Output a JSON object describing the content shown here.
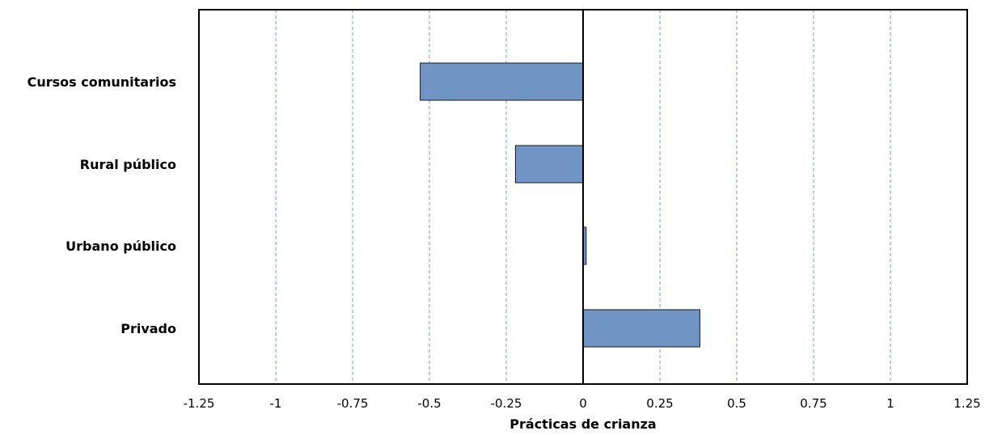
{
  "chart_data": {
    "type": "bar",
    "orientation": "horizontal",
    "categories": [
      "Cursos comunitarios",
      "Rural público",
      "Urbano público",
      "Privado"
    ],
    "values": [
      -0.53,
      -0.22,
      0.01,
      0.38
    ],
    "xlabel": "Prácticas de crianza",
    "ylabel": "",
    "xlim": [
      -1.25,
      1.25
    ],
    "xticks": [
      -1.25,
      -1,
      -0.75,
      -0.5,
      -0.25,
      0,
      0.25,
      0.5,
      0.75,
      1,
      1.25
    ],
    "xtick_labels": [
      "-1.25",
      "-1",
      "-0.75",
      "-0.5",
      "-0.25",
      "0",
      "0.25",
      "0.5",
      "0.75",
      "1",
      "1.25"
    ],
    "grid": true,
    "legend": "none"
  },
  "colors": {
    "bar": "#7094c4",
    "gridline": "#6f9fd2",
    "axis": "#000000",
    "frame": "#000000"
  }
}
